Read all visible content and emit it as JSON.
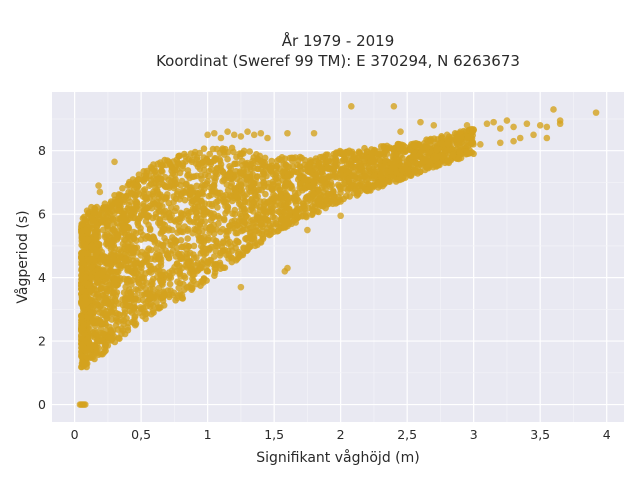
{
  "chart_data": {
    "type": "scatter",
    "title_line1": "År 1979 - 2019",
    "title_line2": "Koordinat (Sweref 99 TM): E 370294, N 6263673",
    "xlabel": "Signifikant våghöjd (m)",
    "ylabel": "Vågperiod (s)",
    "xlim": [
      -0.17,
      4.13
    ],
    "ylim": [
      -0.55,
      9.85
    ],
    "x_ticks": [
      0,
      0.5,
      1,
      1.5,
      2,
      2.5,
      3,
      3.5,
      4
    ],
    "x_tick_labels": [
      "0",
      "0,5",
      "1",
      "1,5",
      "2",
      "2,5",
      "3",
      "3,5",
      "4"
    ],
    "y_ticks": [
      0,
      2,
      4,
      6,
      8
    ],
    "y_tick_labels": [
      "0",
      "2",
      "4",
      "6",
      "8"
    ],
    "grid": true,
    "marker_color": "#d4a21e",
    "plot_background": "#e9e9f2",
    "envelope": [
      {
        "x": 0.05,
        "y_low": 1.1,
        "y_high": 5.8
      },
      {
        "x": 0.1,
        "y_low": 1.2,
        "y_high": 6.2
      },
      {
        "x": 0.2,
        "y_low": 1.5,
        "y_high": 6.3
      },
      {
        "x": 0.3,
        "y_low": 1.9,
        "y_high": 6.6
      },
      {
        "x": 0.4,
        "y_low": 2.3,
        "y_high": 7.0
      },
      {
        "x": 0.5,
        "y_low": 2.6,
        "y_high": 7.3
      },
      {
        "x": 0.6,
        "y_low": 2.9,
        "y_high": 7.6
      },
      {
        "x": 0.7,
        "y_low": 3.1,
        "y_high": 7.8
      },
      {
        "x": 0.8,
        "y_low": 3.3,
        "y_high": 7.9
      },
      {
        "x": 0.9,
        "y_low": 3.6,
        "y_high": 8.0
      },
      {
        "x": 1.0,
        "y_low": 3.9,
        "y_high": 8.1
      },
      {
        "x": 1.1,
        "y_low": 4.2,
        "y_high": 8.1
      },
      {
        "x": 1.2,
        "y_low": 4.5,
        "y_high": 8.1
      },
      {
        "x": 1.3,
        "y_low": 4.8,
        "y_high": 8.0
      },
      {
        "x": 1.4,
        "y_low": 5.1,
        "y_high": 7.9
      },
      {
        "x": 1.5,
        "y_low": 5.4,
        "y_high": 7.8
      },
      {
        "x": 1.6,
        "y_low": 5.6,
        "y_high": 7.8
      },
      {
        "x": 1.7,
        "y_low": 5.8,
        "y_high": 7.8
      },
      {
        "x": 1.8,
        "y_low": 6.0,
        "y_high": 7.8
      },
      {
        "x": 1.9,
        "y_low": 6.2,
        "y_high": 7.9
      },
      {
        "x": 2.0,
        "y_low": 6.4,
        "y_high": 8.0
      },
      {
        "x": 2.2,
        "y_low": 6.7,
        "y_high": 8.1
      },
      {
        "x": 2.4,
        "y_low": 7.0,
        "y_high": 8.2
      },
      {
        "x": 2.6,
        "y_low": 7.3,
        "y_high": 8.3
      },
      {
        "x": 2.8,
        "y_low": 7.6,
        "y_high": 8.5
      },
      {
        "x": 3.0,
        "y_low": 7.9,
        "y_high": 8.7
      }
    ],
    "points": [
      {
        "x": 0.04,
        "y": 0
      },
      {
        "x": 0.05,
        "y": 0
      },
      {
        "x": 0.06,
        "y": 0
      },
      {
        "x": 0.07,
        "y": 0
      },
      {
        "x": 0.08,
        "y": 0
      },
      {
        "x": 0.18,
        "y": 6.9
      },
      {
        "x": 0.19,
        "y": 6.7
      },
      {
        "x": 0.3,
        "y": 7.65
      },
      {
        "x": 0.33,
        "y": 6.1
      },
      {
        "x": 0.42,
        "y": 6.9
      },
      {
        "x": 0.48,
        "y": 7.1
      },
      {
        "x": 0.8,
        "y": 4.6
      },
      {
        "x": 0.85,
        "y": 4.4
      },
      {
        "x": 0.9,
        "y": 4.1
      },
      {
        "x": 0.95,
        "y": 4.3
      },
      {
        "x": 1.0,
        "y": 4.5
      },
      {
        "x": 1.0,
        "y": 8.5
      },
      {
        "x": 1.05,
        "y": 8.55
      },
      {
        "x": 1.1,
        "y": 8.4
      },
      {
        "x": 1.15,
        "y": 8.6
      },
      {
        "x": 1.2,
        "y": 8.5
      },
      {
        "x": 1.25,
        "y": 8.45
      },
      {
        "x": 1.3,
        "y": 8.6
      },
      {
        "x": 1.35,
        "y": 8.5
      },
      {
        "x": 1.4,
        "y": 8.55
      },
      {
        "x": 1.45,
        "y": 8.4
      },
      {
        "x": 1.6,
        "y": 8.55
      },
      {
        "x": 1.8,
        "y": 8.55
      },
      {
        "x": 1.6,
        "y": 4.3
      },
      {
        "x": 1.58,
        "y": 4.2
      },
      {
        "x": 1.25,
        "y": 3.7
      },
      {
        "x": 1.3,
        "y": 5.9
      },
      {
        "x": 1.65,
        "y": 5.8
      },
      {
        "x": 1.75,
        "y": 5.5
      },
      {
        "x": 2.0,
        "y": 5.95
      },
      {
        "x": 2.08,
        "y": 9.4
      },
      {
        "x": 2.4,
        "y": 9.4
      },
      {
        "x": 2.45,
        "y": 8.6
      },
      {
        "x": 2.6,
        "y": 8.9
      },
      {
        "x": 2.7,
        "y": 8.8
      },
      {
        "x": 2.8,
        "y": 8.5
      },
      {
        "x": 2.9,
        "y": 8.6
      },
      {
        "x": 2.95,
        "y": 8.8
      },
      {
        "x": 3.0,
        "y": 8.65
      },
      {
        "x": 3.05,
        "y": 8.2
      },
      {
        "x": 3.1,
        "y": 8.85
      },
      {
        "x": 3.15,
        "y": 8.9
      },
      {
        "x": 3.2,
        "y": 8.7
      },
      {
        "x": 3.25,
        "y": 8.95
      },
      {
        "x": 3.3,
        "y": 8.75
      },
      {
        "x": 3.35,
        "y": 8.4
      },
      {
        "x": 3.4,
        "y": 8.85
      },
      {
        "x": 3.45,
        "y": 8.5
      },
      {
        "x": 3.5,
        "y": 8.8
      },
      {
        "x": 3.55,
        "y": 8.75
      },
      {
        "x": 3.6,
        "y": 9.3
      },
      {
        "x": 3.65,
        "y": 8.95
      },
      {
        "x": 3.65,
        "y": 8.85
      },
      {
        "x": 3.92,
        "y": 9.2
      },
      {
        "x": 3.2,
        "y": 8.25
      },
      {
        "x": 3.3,
        "y": 8.3
      },
      {
        "x": 3.55,
        "y": 8.4
      }
    ]
  }
}
